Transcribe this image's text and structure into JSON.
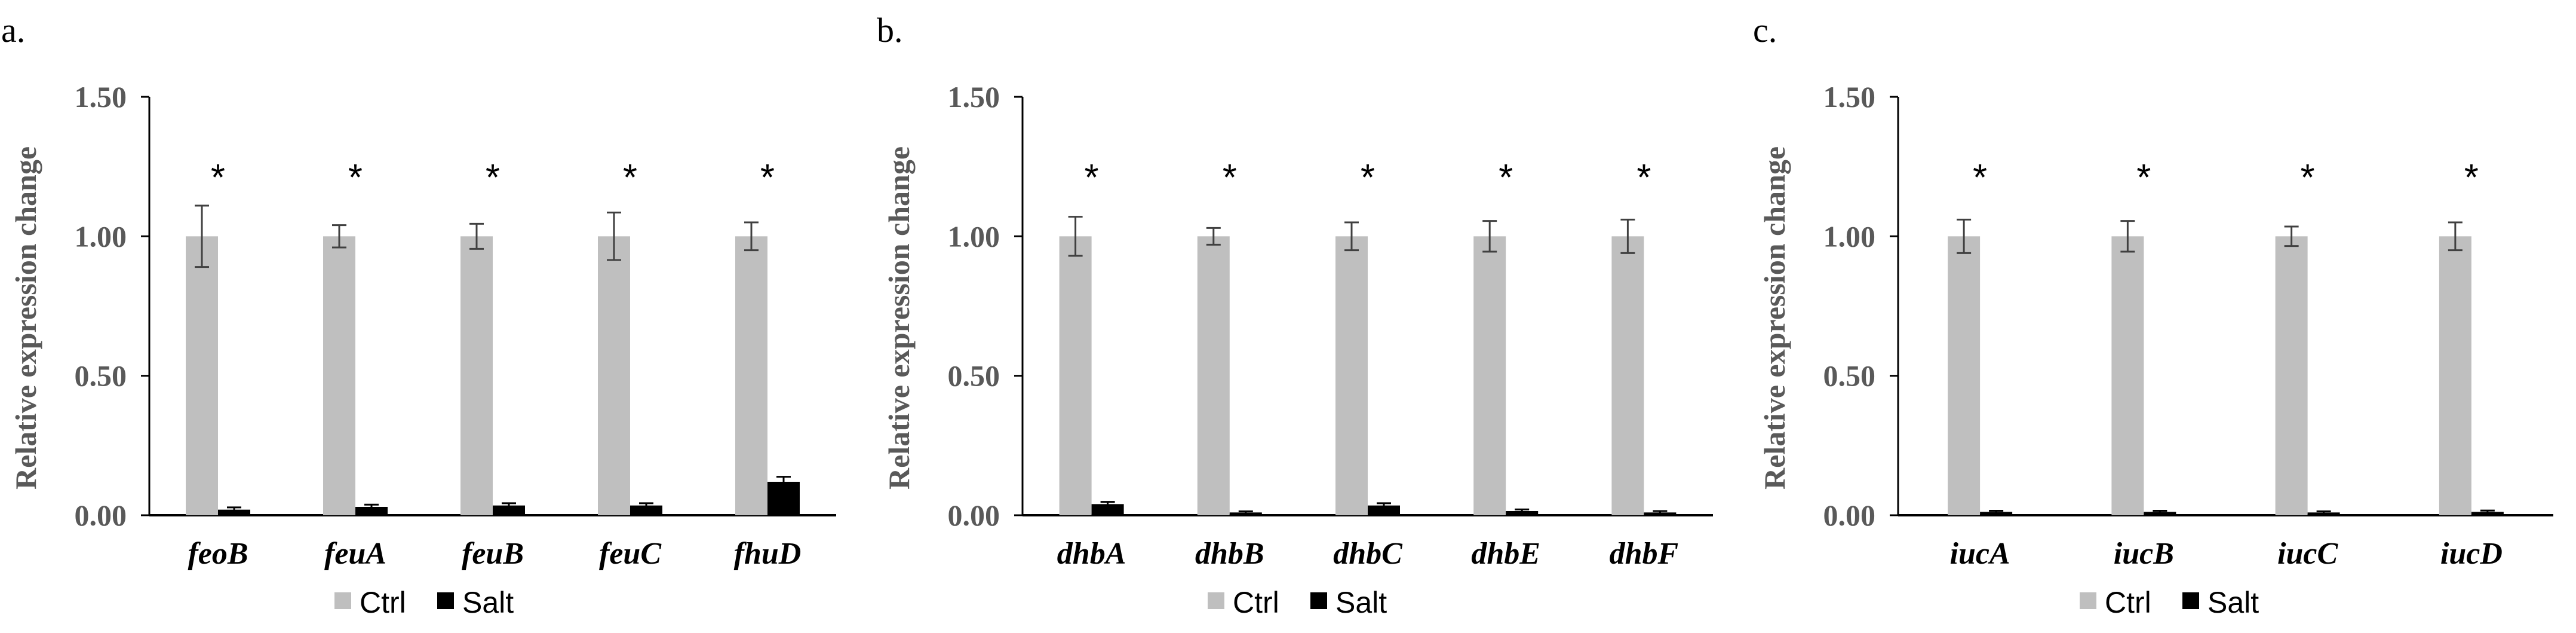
{
  "colors": {
    "ctrl": "#bfbfbf",
    "salt": "#000000",
    "axis": "#000000",
    "text": "#595959"
  },
  "chart_data": [
    {
      "panel_label": "a.",
      "type": "bar",
      "ylabel": "Relative expression change",
      "ylim": [
        0,
        1.5
      ],
      "yticks": [
        "0.00",
        "0.50",
        "1.00",
        "1.50"
      ],
      "grid": false,
      "legend": "bottom-center",
      "categories": [
        "feoB",
        "feuA",
        "feuB",
        "feuC",
        "fhuD"
      ],
      "series": [
        {
          "name": "Ctrl",
          "values": [
            1.0,
            1.0,
            1.0,
            1.0,
            1.0
          ],
          "errors": [
            0.11,
            0.04,
            0.045,
            0.085,
            0.05
          ]
        },
        {
          "name": "Salt",
          "values": [
            0.02,
            0.03,
            0.035,
            0.035,
            0.12
          ],
          "errors": [
            0.008,
            0.008,
            0.008,
            0.008,
            0.018
          ]
        }
      ],
      "annotations": [
        "*",
        "*",
        "*",
        "*",
        "*"
      ]
    },
    {
      "panel_label": "b.",
      "type": "bar",
      "ylabel": "Relative expression change",
      "ylim": [
        0,
        1.5
      ],
      "yticks": [
        "0.00",
        "0.50",
        "1.00",
        "1.50"
      ],
      "grid": false,
      "legend": "bottom-center",
      "categories": [
        "dhbA",
        "dhbB",
        "dhbC",
        "dhbE",
        "dhbF"
      ],
      "series": [
        {
          "name": "Ctrl",
          "values": [
            1.0,
            1.0,
            1.0,
            1.0,
            1.0
          ],
          "errors": [
            0.07,
            0.03,
            0.05,
            0.055,
            0.06
          ]
        },
        {
          "name": "Salt",
          "values": [
            0.04,
            0.01,
            0.035,
            0.015,
            0.01
          ],
          "errors": [
            0.008,
            0.004,
            0.008,
            0.006,
            0.005
          ]
        }
      ],
      "annotations": [
        "*",
        "*",
        "*",
        "*",
        "*"
      ]
    },
    {
      "panel_label": "c.",
      "type": "bar",
      "ylabel": "Relative expression change",
      "ylim": [
        0,
        1.5
      ],
      "yticks": [
        "0.00",
        "0.50",
        "1.00",
        "1.50"
      ],
      "grid": false,
      "legend": "bottom-center",
      "categories": [
        "iucA",
        "iucB",
        "iucC",
        "iucD"
      ],
      "series": [
        {
          "name": "Ctrl",
          "values": [
            1.0,
            1.0,
            1.0,
            1.0
          ],
          "errors": [
            0.06,
            0.055,
            0.035,
            0.05
          ]
        },
        {
          "name": "Salt",
          "values": [
            0.012,
            0.012,
            0.01,
            0.012
          ],
          "errors": [
            0.004,
            0.004,
            0.004,
            0.005
          ]
        }
      ],
      "annotations": [
        "*",
        "*",
        "*",
        "*"
      ]
    }
  ]
}
